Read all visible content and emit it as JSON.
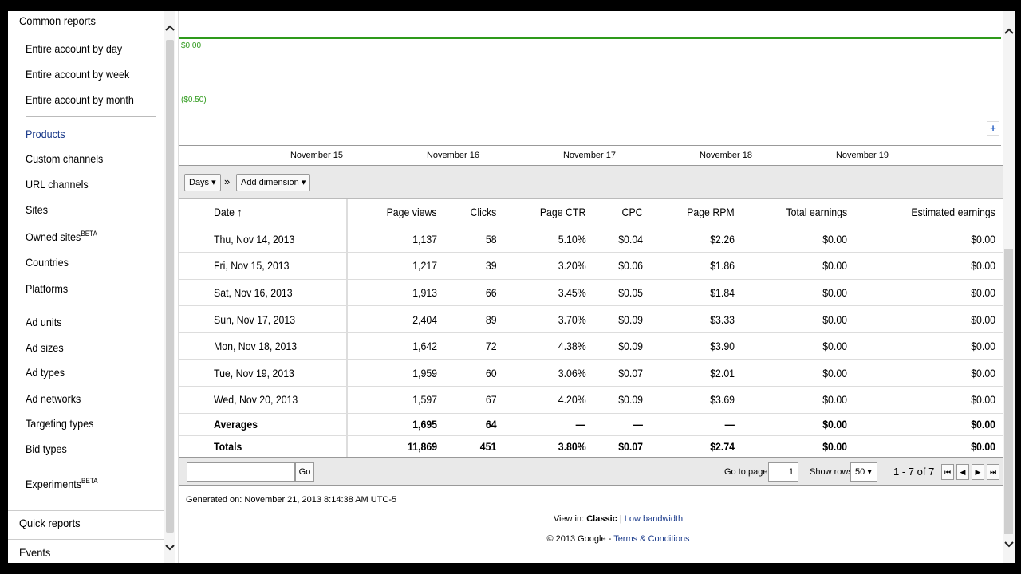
{
  "sidebar": {
    "common_reports": "Common reports",
    "items_top": [
      "Entire account by day",
      "Entire account by week",
      "Entire account by month"
    ],
    "items_products": [
      {
        "label": "Products",
        "active": true
      },
      {
        "label": "Custom channels"
      },
      {
        "label": "URL channels"
      },
      {
        "label": "Sites"
      },
      {
        "label": "Owned sites",
        "badge": "BETA"
      },
      {
        "label": "Countries"
      },
      {
        "label": "Platforms"
      }
    ],
    "items_ads": [
      "Ad units",
      "Ad sizes",
      "Ad types",
      "Ad networks",
      "Targeting types",
      "Bid types"
    ],
    "experiments": {
      "label": "Experiments",
      "badge": "BETA"
    },
    "quick_reports": "Quick reports",
    "events": "Events"
  },
  "chart": {
    "y_zero": "$0.00",
    "y_neg": "($0.50)",
    "x_labels": [
      "November 15",
      "November 16",
      "November 17",
      "November 18",
      "November 19"
    ],
    "line_color": "#2e9a1b"
  },
  "toolbar": {
    "days_label": "Days",
    "separator": "»",
    "add_dimension_label": "Add dimension"
  },
  "table": {
    "columns": [
      "Date",
      "Page views",
      "Clicks",
      "Page CTR",
      "CPC",
      "Page RPM",
      "Total earnings",
      "Estimated earnings"
    ],
    "sort_indicator": "↑",
    "rows": [
      [
        "Thu, Nov 14, 2013",
        "1,137",
        "58",
        "5.10%",
        "$0.04",
        "$2.26",
        "$0.00",
        "$0.00"
      ],
      [
        "Fri, Nov 15, 2013",
        "1,217",
        "39",
        "3.20%",
        "$0.06",
        "$1.86",
        "$0.00",
        "$0.00"
      ],
      [
        "Sat, Nov 16, 2013",
        "1,913",
        "66",
        "3.45%",
        "$0.05",
        "$1.84",
        "$0.00",
        "$0.00"
      ],
      [
        "Sun, Nov 17, 2013",
        "2,404",
        "89",
        "3.70%",
        "$0.09",
        "$3.33",
        "$0.00",
        "$0.00"
      ],
      [
        "Mon, Nov 18, 2013",
        "1,642",
        "72",
        "4.38%",
        "$0.09",
        "$3.90",
        "$0.00",
        "$0.00"
      ],
      [
        "Tue, Nov 19, 2013",
        "1,959",
        "60",
        "3.06%",
        "$0.07",
        "$2.01",
        "$0.00",
        "$0.00"
      ],
      [
        "Wed, Nov 20, 2013",
        "1,597",
        "67",
        "4.20%",
        "$0.09",
        "$3.69",
        "$0.00",
        "$0.00"
      ]
    ],
    "averages": [
      "Averages",
      "1,695",
      "64",
      "—",
      "—",
      "—",
      "$0.00",
      "$0.00"
    ],
    "totals": [
      "Totals",
      "11,869",
      "451",
      "3.80%",
      "$0.07",
      "$2.74",
      "$0.00",
      "$0.00"
    ]
  },
  "pager": {
    "go_label": "Go",
    "go_to_page_label": "Go to page:",
    "page_value": "1",
    "show_rows_label": "Show rows:",
    "rows_value": "50",
    "range": "1 - 7 of 7",
    "nav": [
      "⏮",
      "◀",
      "▶",
      "⏭"
    ]
  },
  "footer": {
    "generated": "Generated on: November 21, 2013 8:14:38 AM UTC-5",
    "view_in": "View in:",
    "classic": "Classic",
    "pipe": "|",
    "low_bandwidth": "Low bandwidth",
    "copyright": "© 2013 Google -",
    "terms": "Terms & Conditions"
  },
  "icons": {
    "up": "chevron-up-icon",
    "down": "chevron-down-icon",
    "plus": "plus-icon"
  }
}
